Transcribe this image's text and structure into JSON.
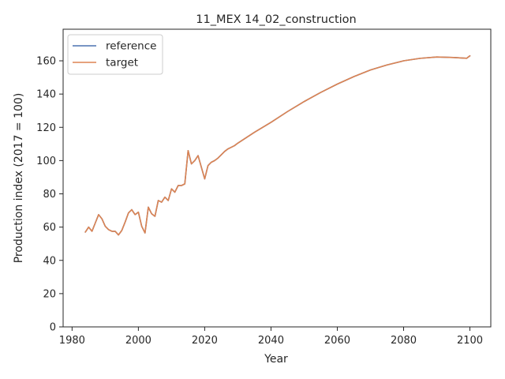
{
  "chart_data": {
    "type": "line",
    "title": "11_MEX 14_02_construction",
    "xlabel": "Year",
    "ylabel": "Production index (2017 = 100)",
    "xlim": [
      1977.3,
      2106.3
    ],
    "ylim": [
      0,
      179
    ],
    "xticks": [
      1980,
      2000,
      2020,
      2040,
      2060,
      2080,
      2100
    ],
    "yticks": [
      0,
      20,
      40,
      60,
      80,
      100,
      120,
      140,
      160
    ],
    "grid": false,
    "legend": "top-left",
    "series": [
      {
        "name": "reference",
        "color": "#4c72b0",
        "x": [
          1984,
          1985,
          1986,
          1987,
          1988,
          1989,
          1990,
          1991,
          1992,
          1993,
          1994,
          1995,
          1996,
          1997,
          1998,
          1999,
          2000,
          2001,
          2002,
          2003,
          2004,
          2005,
          2006,
          2007,
          2008,
          2009,
          2010,
          2011,
          2012,
          2013,
          2014,
          2015,
          2016,
          2017,
          2018,
          2019,
          2020,
          2021,
          2022,
          2023,
          2024,
          2025,
          2026,
          2027,
          2028,
          2029,
          2030,
          2035,
          2040,
          2045,
          2050,
          2055,
          2060,
          2065,
          2070,
          2075,
          2080,
          2085,
          2090,
          2095,
          2099,
          2100
        ],
        "y": [
          57,
          60,
          57.5,
          62.5,
          67.5,
          65,
          60.5,
          58.5,
          57.5,
          57.5,
          55.3,
          58,
          63,
          68.5,
          70.5,
          67.5,
          69,
          60.5,
          56.5,
          72,
          68,
          66.5,
          76,
          75,
          78,
          76,
          83,
          81,
          85,
          85,
          86,
          106,
          98,
          100,
          103,
          96,
          89,
          97,
          99,
          100,
          101.5,
          103.5,
          105.5,
          107,
          108,
          109,
          110.5,
          117,
          123,
          129.5,
          135.5,
          141,
          146,
          150.5,
          154.5,
          157.5,
          160,
          161.5,
          162.3,
          162,
          161.5,
          163
        ]
      },
      {
        "name": "target",
        "color": "#dd8452",
        "x": [
          1984,
          1985,
          1986,
          1987,
          1988,
          1989,
          1990,
          1991,
          1992,
          1993,
          1994,
          1995,
          1996,
          1997,
          1998,
          1999,
          2000,
          2001,
          2002,
          2003,
          2004,
          2005,
          2006,
          2007,
          2008,
          2009,
          2010,
          2011,
          2012,
          2013,
          2014,
          2015,
          2016,
          2017,
          2018,
          2019,
          2020,
          2021,
          2022,
          2023,
          2024,
          2025,
          2026,
          2027,
          2028,
          2029,
          2030,
          2035,
          2040,
          2045,
          2050,
          2055,
          2060,
          2065,
          2070,
          2075,
          2080,
          2085,
          2090,
          2095,
          2099,
          2100
        ],
        "y": [
          57,
          60,
          57.5,
          62.5,
          67.5,
          65,
          60.5,
          58.5,
          57.5,
          57.5,
          55.3,
          58,
          63,
          68.5,
          70.5,
          67.5,
          69,
          60.5,
          56.5,
          72,
          68,
          66.5,
          76,
          75,
          78,
          76,
          83,
          81,
          85,
          85,
          86,
          106,
          98,
          100,
          103,
          96,
          89,
          97,
          99,
          100,
          101.5,
          103.5,
          105.5,
          107,
          108,
          109,
          110.5,
          117,
          123,
          129.5,
          135.5,
          141,
          146,
          150.5,
          154.5,
          157.5,
          160,
          161.5,
          162.3,
          162,
          161.5,
          163
        ]
      }
    ]
  }
}
